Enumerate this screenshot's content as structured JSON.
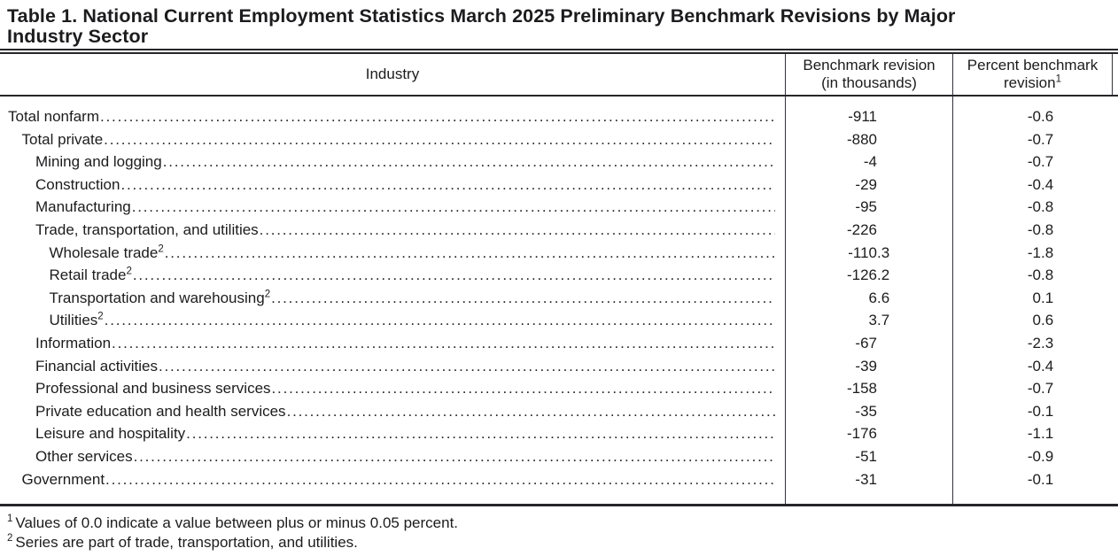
{
  "title": {
    "line1": "Table 1. National Current Employment Statistics March 2025 Preliminary Benchmark Revisions by Major",
    "line2": "Industry Sector"
  },
  "table": {
    "columns": {
      "industry": "Industry",
      "benchmark_line1": "Benchmark revision",
      "benchmark_line2": "(in thousands)",
      "percent_line1": "Percent benchmark",
      "percent_line2": "revision",
      "percent_sup": "1"
    },
    "rows": [
      {
        "label": "Total nonfarm",
        "sup": "",
        "indent": 0,
        "benchmark": "-911",
        "percent": "-0.6"
      },
      {
        "label": "Total private",
        "sup": "",
        "indent": 1,
        "benchmark": "-880",
        "percent": "-0.7"
      },
      {
        "label": "Mining and logging",
        "sup": "",
        "indent": 2,
        "benchmark": "-4",
        "percent": "-0.7"
      },
      {
        "label": "Construction",
        "sup": "",
        "indent": 2,
        "benchmark": "-29",
        "percent": "-0.4"
      },
      {
        "label": "Manufacturing",
        "sup": "",
        "indent": 2,
        "benchmark": "-95",
        "percent": "-0.8"
      },
      {
        "label": "Trade, transportation, and utilities",
        "sup": "",
        "indent": 2,
        "benchmark": "-226",
        "percent": "-0.8"
      },
      {
        "label": "Wholesale trade",
        "sup": "2",
        "indent": 3,
        "benchmark": "-110.3",
        "percent": "-1.8"
      },
      {
        "label": "Retail trade",
        "sup": "2",
        "indent": 3,
        "benchmark": "-126.2",
        "percent": "-0.8"
      },
      {
        "label": "Transportation and warehousing",
        "sup": "2",
        "indent": 3,
        "benchmark": "6.6",
        "percent": "0.1"
      },
      {
        "label": "Utilities",
        "sup": "2",
        "indent": 3,
        "benchmark": "3.7",
        "percent": "0.6"
      },
      {
        "label": "Information",
        "sup": "",
        "indent": 2,
        "benchmark": "-67",
        "percent": "-2.3"
      },
      {
        "label": "Financial activities",
        "sup": "",
        "indent": 2,
        "benchmark": "-39",
        "percent": "-0.4"
      },
      {
        "label": "Professional and business services",
        "sup": "",
        "indent": 2,
        "benchmark": "-158",
        "percent": "-0.7"
      },
      {
        "label": "Private education and health services",
        "sup": "",
        "indent": 2,
        "benchmark": "-35",
        "percent": "-0.1"
      },
      {
        "label": "Leisure and hospitality",
        "sup": "",
        "indent": 2,
        "benchmark": "-176",
        "percent": "-1.1"
      },
      {
        "label": "Other services",
        "sup": "",
        "indent": 2,
        "benchmark": "-51",
        "percent": "-0.9"
      },
      {
        "label": "Government",
        "sup": "",
        "indent": 1,
        "benchmark": "-31",
        "percent": "-0.1"
      }
    ]
  },
  "footnotes": [
    {
      "marker": "1",
      "text": "Values of 0.0 indicate a value between plus or minus 0.05 percent."
    },
    {
      "marker": "2",
      "text": "Series are part of trade, transportation, and utilities."
    }
  ]
}
